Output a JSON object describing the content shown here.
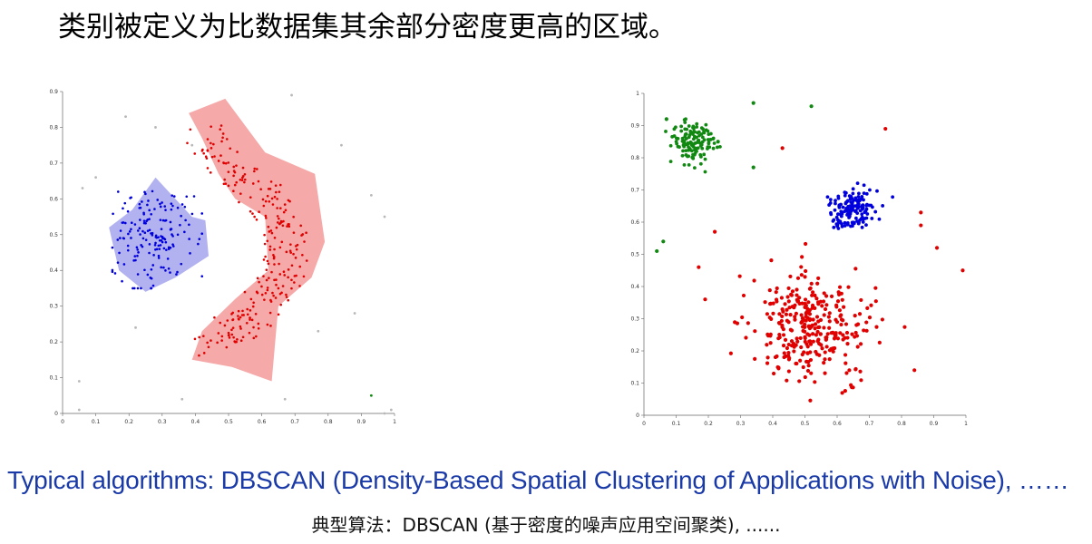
{
  "heading": "类别被定义为比数据集其余部分密度更高的区域。",
  "caption_en": "Typical algorithms: DBSCAN (Density-Based Spatial Clustering of Applications with Noise), ……",
  "caption_cn": "典型算法：DBSCAN (基于密度的噪声应用空间聚类), ......",
  "chart_data": [
    {
      "type": "scatter",
      "xlim": [
        0,
        1
      ],
      "ylim": [
        0,
        0.9
      ],
      "x_ticks": [
        "0",
        "0.1",
        "0.2",
        "0.3",
        "0.4",
        "0.5",
        "0.6",
        "0.7",
        "0.8",
        "0.9",
        "1"
      ],
      "y_ticks": [
        "0",
        "0.1",
        "0.2",
        "0.3",
        "0.4",
        "0.5",
        "0.6",
        "0.7",
        "0.8",
        "0.9"
      ],
      "colors": {
        "cluster_blue": "#0000dd",
        "hull_blue": "#aaaaee",
        "cluster_red": "#e00000",
        "hull_red": "#f4a0a0",
        "noise": "#b8b8b8",
        "outlier_green": "#118811"
      },
      "clusters": [
        {
          "color": "blue",
          "center": [
            0.27,
            0.49
          ],
          "spread": [
            0.06,
            0.07
          ],
          "count": 170,
          "hull": [
            [
              0.21,
              0.57
            ],
            [
              0.28,
              0.66
            ],
            [
              0.39,
              0.55
            ],
            [
              0.43,
              0.54
            ],
            [
              0.44,
              0.44
            ],
            [
              0.34,
              0.38
            ],
            [
              0.25,
              0.34
            ],
            [
              0.17,
              0.4
            ],
            [
              0.14,
              0.52
            ]
          ]
        },
        {
          "color": "red",
          "path": [
            [
              0.42,
              0.78
            ],
            [
              0.5,
              0.7
            ],
            [
              0.59,
              0.62
            ],
            [
              0.66,
              0.55
            ],
            [
              0.68,
              0.45
            ],
            [
              0.65,
              0.37
            ],
            [
              0.6,
              0.3
            ],
            [
              0.52,
              0.24
            ],
            [
              0.44,
              0.18
            ]
          ],
          "width": 0.04,
          "count": 260,
          "hull": [
            [
              0.38,
              0.84
            ],
            [
              0.49,
              0.88
            ],
            [
              0.61,
              0.73
            ],
            [
              0.76,
              0.67
            ],
            [
              0.79,
              0.48
            ],
            [
              0.75,
              0.38
            ],
            [
              0.65,
              0.3
            ],
            [
              0.63,
              0.09
            ],
            [
              0.51,
              0.13
            ],
            [
              0.39,
              0.15
            ],
            [
              0.42,
              0.23
            ],
            [
              0.52,
              0.32
            ],
            [
              0.62,
              0.4
            ],
            [
              0.61,
              0.55
            ],
            [
              0.52,
              0.6
            ],
            [
              0.47,
              0.67
            ],
            [
              0.42,
              0.77
            ]
          ]
        }
      ],
      "noise": [
        [
          0.06,
          0.63
        ],
        [
          0.1,
          0.66
        ],
        [
          0.19,
          0.83
        ],
        [
          0.28,
          0.8
        ],
        [
          0.39,
          0.75
        ],
        [
          0.69,
          0.89
        ],
        [
          0.84,
          0.75
        ],
        [
          0.93,
          0.61
        ],
        [
          0.97,
          0.55
        ],
        [
          0.88,
          0.28
        ],
        [
          0.77,
          0.23
        ],
        [
          0.22,
          0.24
        ],
        [
          0.05,
          0.09
        ],
        [
          0.36,
          0.04
        ],
        [
          0.67,
          0.04
        ],
        [
          0.05,
          0.01
        ],
        [
          0.97,
          0.0
        ],
        [
          0.99,
          0.01
        ]
      ],
      "outliers_green": [
        [
          0.93,
          0.05
        ]
      ]
    },
    {
      "type": "scatter",
      "xlim": [
        0,
        1
      ],
      "ylim": [
        0,
        1
      ],
      "x_ticks": [
        "0",
        "0.1",
        "0.2",
        "0.3",
        "0.4",
        "0.5",
        "0.6",
        "0.7",
        "0.8",
        "0.9",
        "1"
      ],
      "y_ticks": [
        "0",
        "0.1",
        "0.2",
        "0.3",
        "0.4",
        "0.5",
        "0.6",
        "0.7",
        "0.8",
        "0.9",
        "1"
      ],
      "colors": {
        "green": "#118811",
        "blue": "#0000dd",
        "red": "#e00000"
      },
      "clusters": [
        {
          "color": "green",
          "center": [
            0.15,
            0.85
          ],
          "spread": [
            0.035,
            0.035
          ],
          "count": 130
        },
        {
          "color": "blue",
          "center": [
            0.65,
            0.64
          ],
          "spread": [
            0.035,
            0.035
          ],
          "count": 150
        },
        {
          "color": "red",
          "center": [
            0.52,
            0.27
          ],
          "spread": [
            0.095,
            0.09
          ],
          "count": 320
        }
      ],
      "extra_points": [
        {
          "color": "green",
          "points": [
            [
              0.34,
              0.97
            ],
            [
              0.52,
              0.96
            ],
            [
              0.34,
              0.77
            ],
            [
              0.23,
              0.85
            ],
            [
              0.07,
              0.92
            ],
            [
              0.06,
              0.54
            ],
            [
              0.04,
              0.51
            ]
          ]
        },
        {
          "color": "red",
          "points": [
            [
              0.75,
              0.89
            ],
            [
              0.43,
              0.83
            ],
            [
              0.86,
              0.63
            ],
            [
              0.86,
              0.59
            ],
            [
              0.91,
              0.52
            ],
            [
              0.99,
              0.45
            ],
            [
              0.17,
              0.46
            ],
            [
              0.19,
              0.36
            ],
            [
              0.84,
              0.14
            ],
            [
              0.22,
              0.57
            ]
          ]
        }
      ]
    }
  ]
}
